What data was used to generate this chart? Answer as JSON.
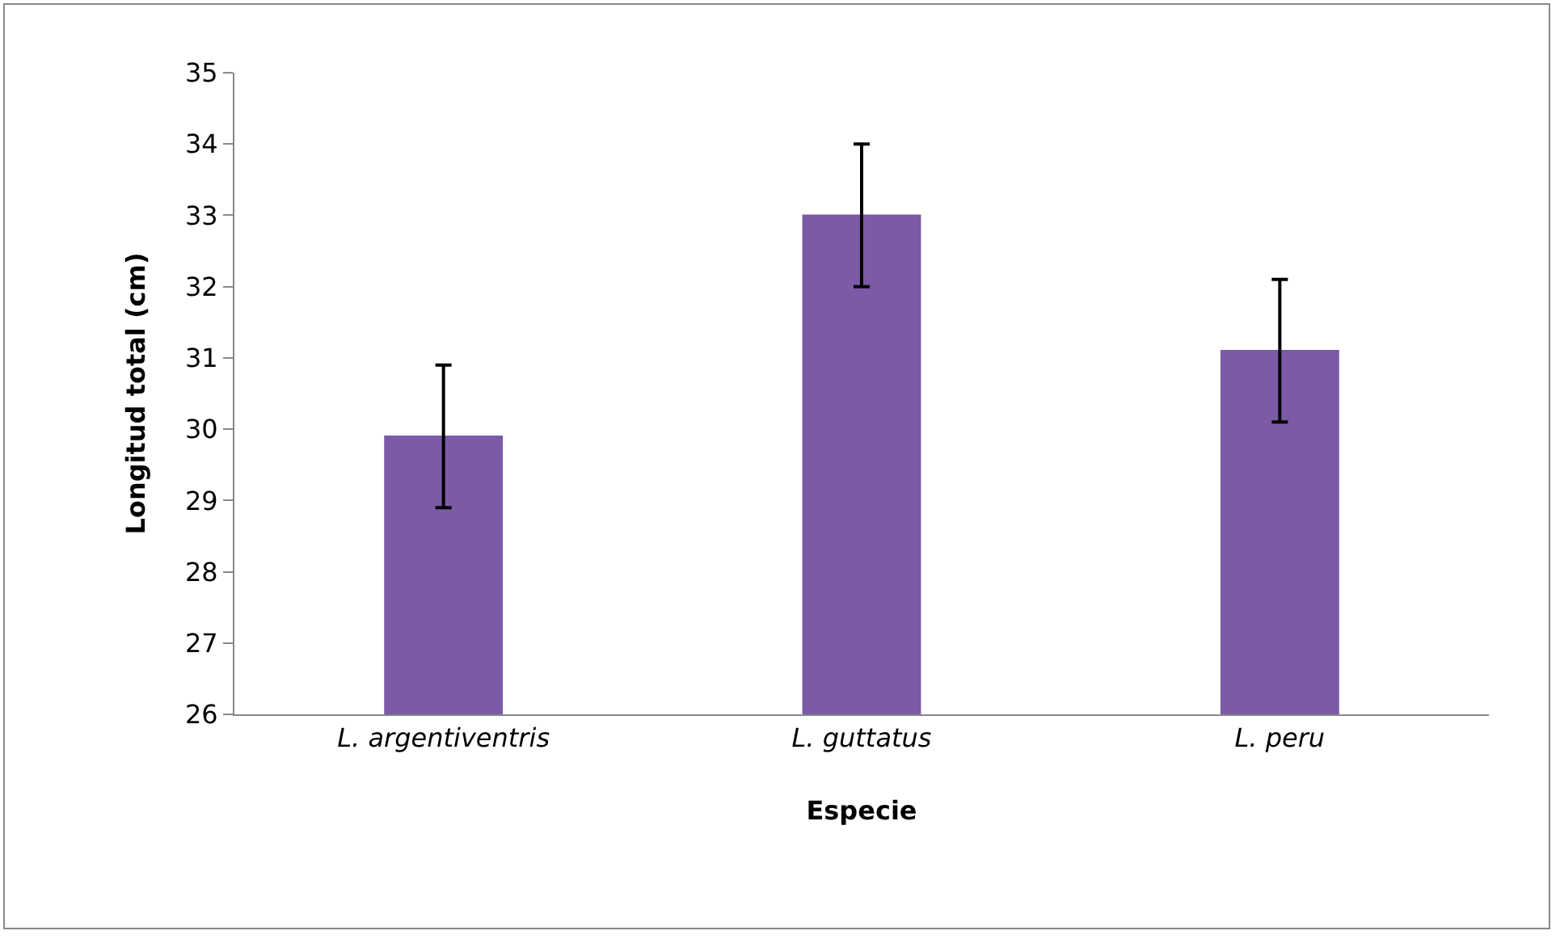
{
  "chart_data": {
    "type": "bar",
    "xlabel": "Especie",
    "ylabel": "Longitud total (cm)",
    "categories": [
      "L. argentiventris",
      "L. guttatus",
      "L. peru"
    ],
    "values": [
      29.9,
      33.0,
      31.1
    ],
    "errors": [
      1,
      1,
      1
    ],
    "color": "#7b5aa6",
    "ylim": [
      26,
      35
    ],
    "yticks": [
      26,
      27,
      28,
      29,
      30,
      31,
      32,
      33,
      34,
      35
    ],
    "grid": false
  }
}
